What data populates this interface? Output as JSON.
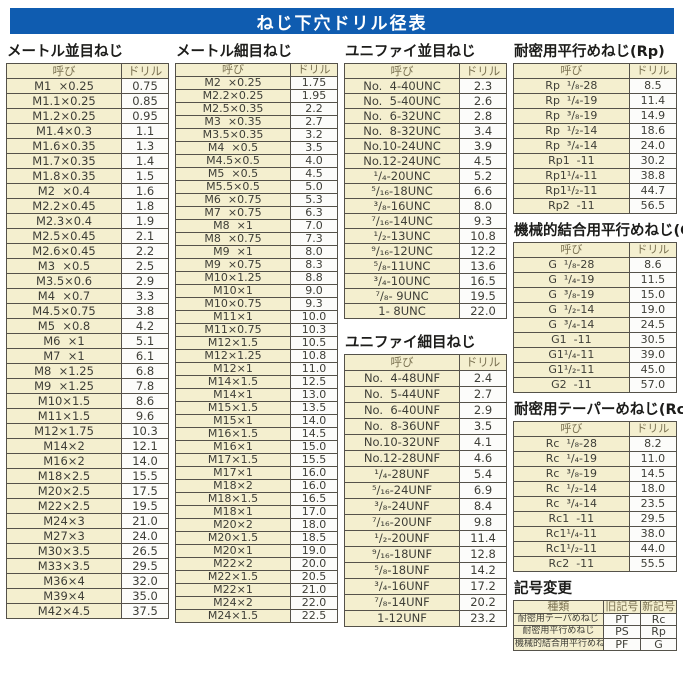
{
  "header": {
    "title": "ねじ下穴ドリル径表"
  },
  "sections": [
    {
      "id": "metric-coarse",
      "title": "メートル並目ねじ",
      "headers": [
        "呼び",
        "ドリル"
      ],
      "rows": [
        [
          "M1  ×0.25",
          "0.75"
        ],
        [
          "M1.1×0.25",
          "0.85"
        ],
        [
          "M1.2×0.25",
          "0.95"
        ],
        [
          "M1.4×0.3",
          "1.1"
        ],
        [
          "M1.6×0.35",
          "1.3"
        ],
        [
          "M1.7×0.35",
          "1.4"
        ],
        [
          "M1.8×0.35",
          "1.5"
        ],
        [
          "M2  ×0.4",
          "1.6"
        ],
        [
          "M2.2×0.45",
          "1.8"
        ],
        [
          "M2.3×0.4",
          "1.9"
        ],
        [
          "M2.5×0.45",
          "2.1"
        ],
        [
          "M2.6×0.45",
          "2.2"
        ],
        [
          "M3  ×0.5",
          "2.5"
        ],
        [
          "M3.5×0.6",
          "2.9"
        ],
        [
          "M4  ×0.7",
          "3.3"
        ],
        [
          "M4.5×0.75",
          "3.8"
        ],
        [
          "M5  ×0.8",
          "4.2"
        ],
        [
          "M6  ×1",
          "5.1"
        ],
        [
          "M7  ×1",
          "6.1"
        ],
        [
          "M8  ×1.25",
          "6.8"
        ],
        [
          "M9  ×1.25",
          "7.8"
        ],
        [
          "M10×1.5",
          "8.6"
        ],
        [
          "M11×1.5",
          "9.6"
        ],
        [
          "M12×1.75",
          "10.3"
        ],
        [
          "M14×2",
          "12.1"
        ],
        [
          "M16×2",
          "14.0"
        ],
        [
          "M18×2.5",
          "15.5"
        ],
        [
          "M20×2.5",
          "17.5"
        ],
        [
          "M22×2.5",
          "19.5"
        ],
        [
          "M24×3",
          "21.0"
        ],
        [
          "M27×3",
          "24.0"
        ],
        [
          "M30×3.5",
          "26.5"
        ],
        [
          "M33×3.5",
          "29.5"
        ],
        [
          "M36×4",
          "32.0"
        ],
        [
          "M39×4",
          "35.0"
        ],
        [
          "M42×4.5",
          "37.5"
        ]
      ]
    },
    {
      "id": "metric-fine",
      "title": "メートル細目ねじ",
      "headers": [
        "呼び",
        "ドリル"
      ],
      "rows": [
        [
          "M2  ×0.25",
          "1.75"
        ],
        [
          "M2.2×0.25",
          "1.95"
        ],
        [
          "M2.5×0.35",
          "2.2"
        ],
        [
          "M3  ×0.35",
          "2.7"
        ],
        [
          "M3.5×0.35",
          "3.2"
        ],
        [
          "M4  ×0.5",
          "3.5"
        ],
        [
          "M4.5×0.5",
          "4.0"
        ],
        [
          "M5  ×0.5",
          "4.5"
        ],
        [
          "M5.5×0.5",
          "5.0"
        ],
        [
          "M6  ×0.75",
          "5.3"
        ],
        [
          "M7  ×0.75",
          "6.3"
        ],
        [
          "M8  ×1",
          "7.0"
        ],
        [
          "M8  ×0.75",
          "7.3"
        ],
        [
          "M9  ×1",
          "8.0"
        ],
        [
          "M9  ×0.75",
          "8.3"
        ],
        [
          "M10×1.25",
          "8.8"
        ],
        [
          "M10×1",
          "9.0"
        ],
        [
          "M10×0.75",
          "9.3"
        ],
        [
          "M11×1",
          "10.0"
        ],
        [
          "M11×0.75",
          "10.3"
        ],
        [
          "M12×1.5",
          "10.5"
        ],
        [
          "M12×1.25",
          "10.8"
        ],
        [
          "M12×1",
          "11.0"
        ],
        [
          "M14×1.5",
          "12.5"
        ],
        [
          "M14×1",
          "13.0"
        ],
        [
          "M15×1.5",
          "13.5"
        ],
        [
          "M15×1",
          "14.0"
        ],
        [
          "M16×1.5",
          "14.5"
        ],
        [
          "M16×1",
          "15.0"
        ],
        [
          "M17×1.5",
          "15.5"
        ],
        [
          "M17×1",
          "16.0"
        ],
        [
          "M18×2",
          "16.0"
        ],
        [
          "M18×1.5",
          "16.5"
        ],
        [
          "M18×1",
          "17.0"
        ],
        [
          "M20×2",
          "18.0"
        ],
        [
          "M20×1.5",
          "18.5"
        ],
        [
          "M20×1",
          "19.0"
        ],
        [
          "M22×2",
          "20.0"
        ],
        [
          "M22×1.5",
          "20.5"
        ],
        [
          "M22×1",
          "21.0"
        ],
        [
          "M24×2",
          "22.0"
        ],
        [
          "M24×1.5",
          "22.5"
        ]
      ]
    },
    {
      "id": "unified-coarse",
      "title": "ユニファイ並目ねじ",
      "headers": [
        "呼び",
        "ドリル"
      ],
      "rows": [
        [
          "No.  4-40UNC",
          "2.3"
        ],
        [
          "No.  5-40UNC",
          "2.6"
        ],
        [
          "No.  6-32UNC",
          "2.8"
        ],
        [
          "No.  8-32UNC",
          "3.4"
        ],
        [
          "No.10-24UNC",
          "3.9"
        ],
        [
          "No.12-24UNC",
          "4.5"
        ],
        [
          "¹/₄-20UNC",
          "5.2"
        ],
        [
          "⁵/₁₆-18UNC",
          "6.6"
        ],
        [
          "³/₈-16UNC",
          "8.0"
        ],
        [
          "⁷/₁₆-14UNC",
          "9.3"
        ],
        [
          "¹/₂-13UNC",
          "10.8"
        ],
        [
          "⁹/₁₆-12UNC",
          "12.2"
        ],
        [
          "⁵/₈-11UNC",
          "13.6"
        ],
        [
          "³/₄-10UNC",
          "16.5"
        ],
        [
          "⁷/₈- 9UNC",
          "19.5"
        ],
        [
          "1- 8UNC",
          "22.0"
        ]
      ]
    },
    {
      "id": "unified-fine",
      "title": "ユニファイ細目ねじ",
      "headers": [
        "呼び",
        "ドリル"
      ],
      "rows": [
        [
          "No.  4-48UNF",
          "2.4"
        ],
        [
          "No.  5-44UNF",
          "2.7"
        ],
        [
          "No.  6-40UNF",
          "2.9"
        ],
        [
          "No.  8-36UNF",
          "3.5"
        ],
        [
          "No.10-32UNF",
          "4.1"
        ],
        [
          "No.12-28UNF",
          "4.6"
        ],
        [
          "¹/₄-28UNF",
          "5.4"
        ],
        [
          "⁵/₁₆-24UNF",
          "6.9"
        ],
        [
          "³/₈-24UNF",
          "8.4"
        ],
        [
          "⁷/₁₆-20UNF",
          "9.8"
        ],
        [
          "¹/₂-20UNF",
          "11.4"
        ],
        [
          "⁹/₁₆-18UNF",
          "12.8"
        ],
        [
          "⁵/₈-18UNF",
          "14.2"
        ],
        [
          "³/₄-16UNF",
          "17.2"
        ],
        [
          "⁷/₈-14UNF",
          "20.2"
        ],
        [
          "1-12UNF",
          "23.2"
        ]
      ]
    },
    {
      "id": "rp",
      "title": "耐密用平行めねじ(Rp)",
      "headers": [
        "呼び",
        "ドリル"
      ],
      "rows": [
        [
          "Rp  ¹/₈-28",
          "8.5"
        ],
        [
          "Rp  ¹/₄-19",
          "11.4"
        ],
        [
          "Rp  ³/₈-19",
          "14.9"
        ],
        [
          "Rp  ¹/₂-14",
          "18.6"
        ],
        [
          "Rp  ³/₄-14",
          "24.0"
        ],
        [
          "Rp1  -11",
          "30.2"
        ],
        [
          "Rp1¹/₄-11",
          "38.8"
        ],
        [
          "Rp1¹/₂-11",
          "44.7"
        ],
        [
          "Rp2  -11",
          "56.5"
        ]
      ]
    },
    {
      "id": "g",
      "title": "機械的結合用平行めねじ(G)",
      "headers": [
        "呼び",
        "ドリル"
      ],
      "rows": [
        [
          "G  ¹/₈-28",
          "8.6"
        ],
        [
          "G  ¹/₄-19",
          "11.5"
        ],
        [
          "G  ³/₈-19",
          "15.0"
        ],
        [
          "G  ¹/₂-14",
          "19.0"
        ],
        [
          "G  ³/₄-14",
          "24.5"
        ],
        [
          "G1  -11",
          "30.5"
        ],
        [
          "G1¹/₄-11",
          "39.0"
        ],
        [
          "G1¹/₂-11",
          "45.0"
        ],
        [
          "G2  -11",
          "57.0"
        ]
      ]
    },
    {
      "id": "rc",
      "title": "耐密用テーパーめねじ(Rc)",
      "headers": [
        "呼び",
        "ドリル"
      ],
      "rows": [
        [
          "Rc  ¹/₈-28",
          "8.2"
        ],
        [
          "Rc  ¹/₄-19",
          "11.0"
        ],
        [
          "Rc  ³/₈-19",
          "14.5"
        ],
        [
          "Rc  ¹/₂-14",
          "18.0"
        ],
        [
          "Rc  ³/₄-14",
          "23.5"
        ],
        [
          "Rc1  -11",
          "29.5"
        ],
        [
          "Rc1¹/₄-11",
          "38.0"
        ],
        [
          "Rc1¹/₂-11",
          "44.0"
        ],
        [
          "Rc2  -11",
          "55.5"
        ]
      ]
    },
    {
      "id": "symbol-change",
      "title": "記号変更",
      "headers": [
        "種類",
        "旧記号",
        "新記号"
      ],
      "rows": [
        [
          "耐密用テーパめねじ",
          "PT",
          "Rc"
        ],
        [
          "耐密用平行めねじ",
          "PS",
          "Rp"
        ],
        [
          "機械的結合用平行めねじ",
          "PF",
          "G"
        ]
      ]
    }
  ],
  "colors": {
    "titlebar_bg": "#0f5cb0",
    "cell_cream": "#f4efcf",
    "cell_white": "#fcfcfa",
    "border": "#55524a"
  }
}
